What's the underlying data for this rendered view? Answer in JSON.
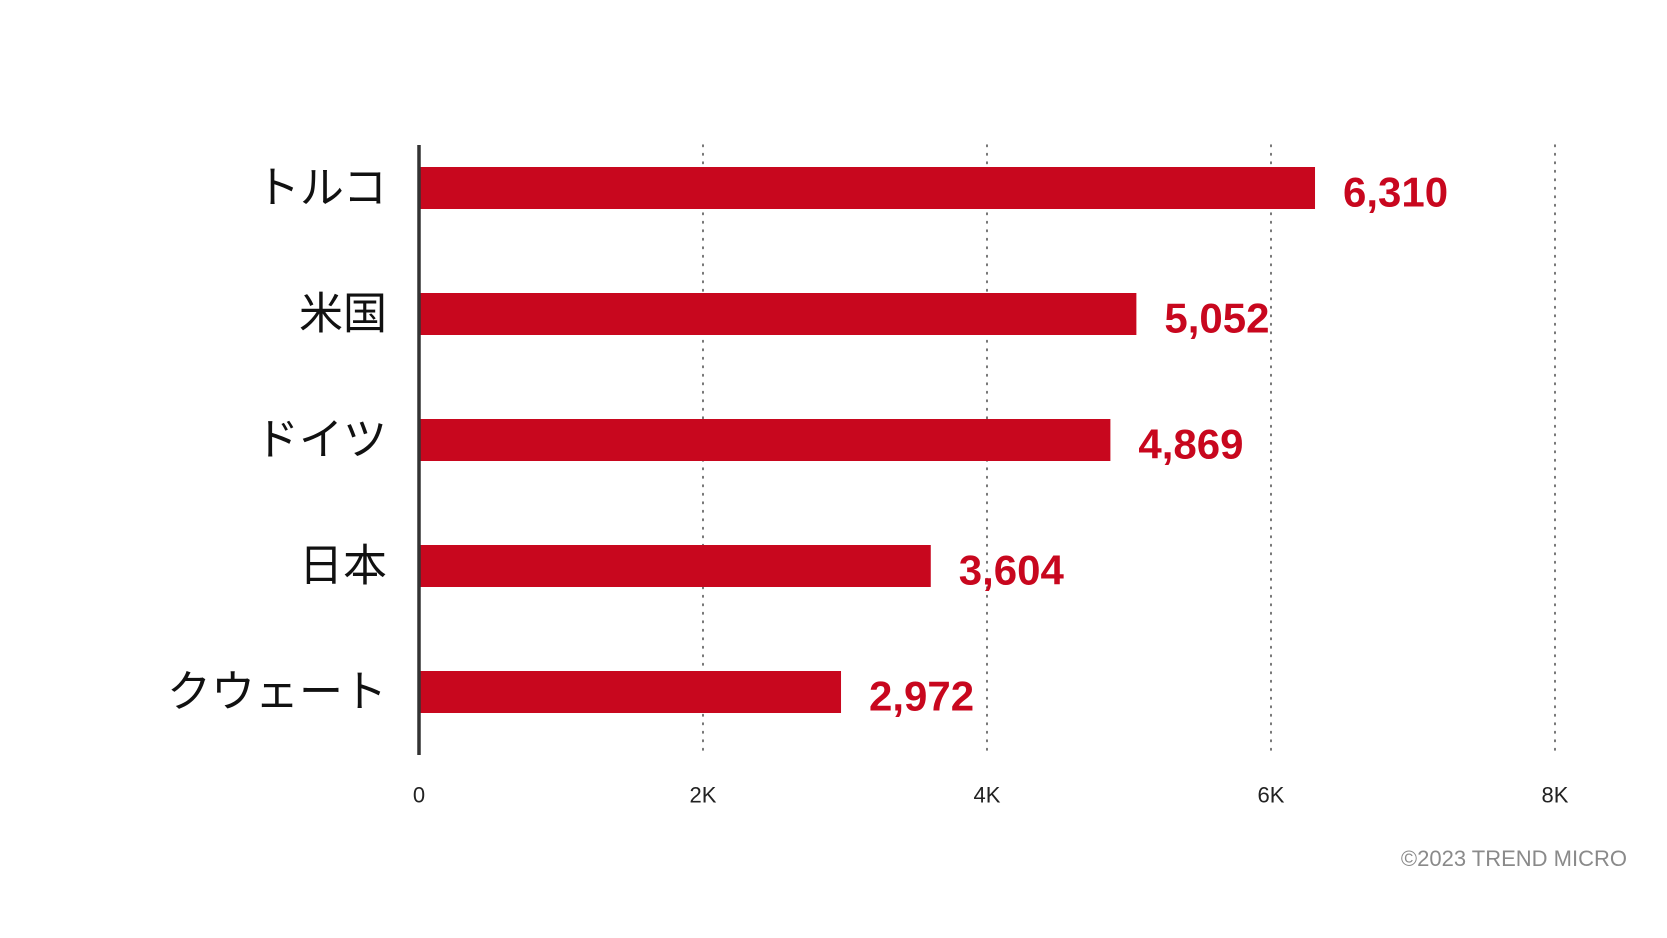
{
  "chart_data": {
    "type": "bar",
    "orientation": "horizontal",
    "categories": [
      "トルコ",
      "米国",
      "ドイツ",
      "日本",
      "クウェート"
    ],
    "values": [
      6310,
      5052,
      4869,
      3604,
      2972
    ],
    "value_labels": [
      "6,310",
      "5,052",
      "4,869",
      "3,604",
      "2,972"
    ],
    "xlim": [
      0,
      8000
    ],
    "xticks": [
      0,
      2000,
      4000,
      6000,
      8000
    ],
    "xtick_labels": [
      "0",
      "2K",
      "4K",
      "6K",
      "8K"
    ],
    "grid": "vertical dotted",
    "title": "",
    "xlabel": "",
    "ylabel": ""
  },
  "colors": {
    "bar": "#c8071e",
    "value_text": "#c8071e"
  },
  "credit": "©2023 TREND MICRO"
}
